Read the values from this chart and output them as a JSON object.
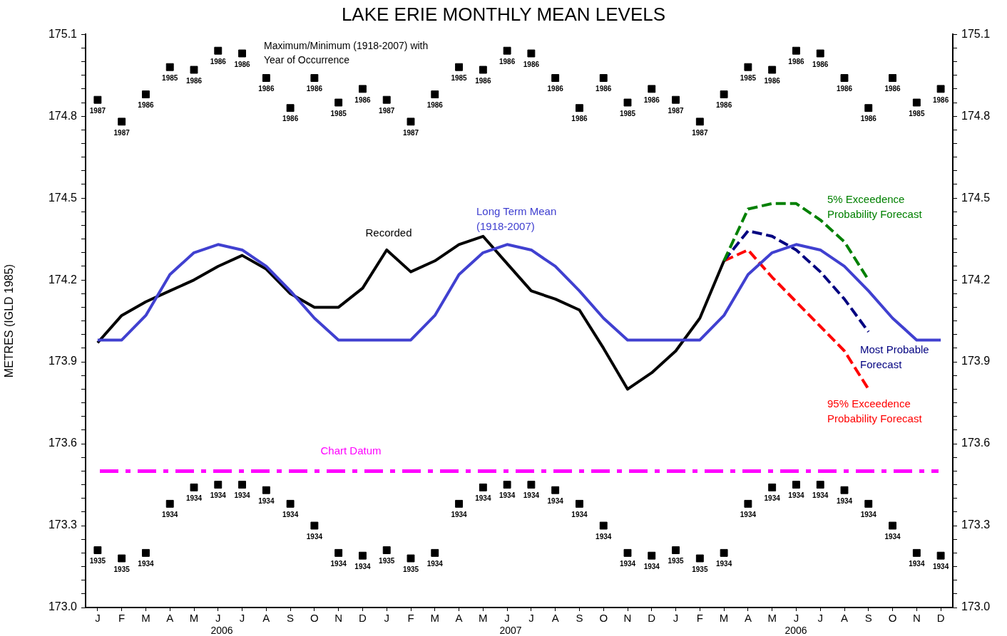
{
  "chart_data": {
    "type": "line",
    "title": "LAKE ERIE MONTHLY MEAN LEVELS",
    "ylabel": "METRES (IGLD 1985)",
    "categories": [
      "J",
      "F",
      "M",
      "A",
      "M",
      "J",
      "J",
      "A",
      "S",
      "O",
      "N",
      "D",
      "J",
      "F",
      "M",
      "A",
      "M",
      "J",
      "J",
      "A",
      "S",
      "O",
      "N",
      "D",
      "J",
      "F",
      "M",
      "A",
      "M",
      "J",
      "J",
      "A",
      "S",
      "O",
      "N",
      "D"
    ],
    "series": [
      {
        "name": "Long Term Mean (1918-2007)",
        "color": "#4040d0",
        "line_style": "solid",
        "values": [
          173.98,
          173.98,
          174.07,
          174.22,
          174.3,
          174.33,
          174.31,
          174.25,
          174.16,
          174.06,
          173.98,
          173.98,
          173.98,
          173.98,
          174.07,
          174.22,
          174.3,
          174.33,
          174.31,
          174.25,
          174.16,
          174.06,
          173.98,
          173.98,
          173.98,
          173.98,
          174.07,
          174.22,
          174.3,
          174.33,
          174.31,
          174.25,
          174.16,
          174.06,
          173.98,
          173.98
        ]
      },
      {
        "name": "Recorded",
        "color": "#000000",
        "line_style": "solid",
        "values": [
          173.97,
          174.07,
          174.12,
          174.16,
          174.2,
          174.25,
          174.29,
          174.24,
          174.15,
          174.1,
          174.1,
          174.17,
          174.31,
          174.23,
          174.27,
          174.33,
          174.36,
          174.26,
          174.16,
          174.13,
          174.09,
          173.95,
          173.8,
          173.86,
          173.94,
          174.06,
          174.27,
          null,
          null,
          null,
          null,
          null,
          null,
          null,
          null,
          null
        ]
      },
      {
        "name": "5% Exceedence Probability Forecast",
        "color": "#008000",
        "line_style": "dashed",
        "values": [
          null,
          null,
          null,
          null,
          null,
          null,
          null,
          null,
          null,
          null,
          null,
          null,
          null,
          null,
          null,
          null,
          null,
          null,
          null,
          null,
          null,
          null,
          null,
          null,
          null,
          null,
          174.27,
          174.46,
          174.48,
          174.48,
          174.42,
          174.34,
          174.2,
          null,
          null,
          null
        ]
      },
      {
        "name": "Most Probable Forecast",
        "color": "#000080",
        "line_style": "dashed",
        "values": [
          null,
          null,
          null,
          null,
          null,
          null,
          null,
          null,
          null,
          null,
          null,
          null,
          null,
          null,
          null,
          null,
          null,
          null,
          null,
          null,
          null,
          null,
          null,
          null,
          null,
          null,
          174.27,
          174.38,
          174.36,
          174.31,
          174.23,
          174.13,
          174.01,
          null,
          null,
          null
        ]
      },
      {
        "name": "95% Exceedence Probability Forecast",
        "color": "#ff0000",
        "line_style": "dashed",
        "values": [
          null,
          null,
          null,
          null,
          null,
          null,
          null,
          null,
          null,
          null,
          null,
          null,
          null,
          null,
          null,
          null,
          null,
          null,
          null,
          null,
          null,
          null,
          null,
          null,
          null,
          null,
          174.27,
          174.31,
          174.21,
          174.12,
          174.03,
          173.94,
          173.8,
          null,
          null,
          null
        ]
      },
      {
        "type": "scatter",
        "marker": "square",
        "color": "#000000",
        "values": [
          174.86,
          174.78,
          174.88,
          174.98,
          174.97,
          175.04,
          175.03,
          174.94,
          174.83,
          174.94,
          174.85,
          174.9,
          174.86,
          174.78,
          174.88,
          174.98,
          174.97,
          175.04,
          175.03,
          174.94,
          174.83,
          174.94,
          174.85,
          174.9,
          174.86,
          174.78,
          174.88,
          174.98,
          174.97,
          175.04,
          175.03,
          174.94,
          174.83,
          174.94,
          174.85,
          174.9
        ]
      },
      {
        "type": "scatter",
        "marker": "square",
        "color": "#000000",
        "values": [
          173.21,
          173.18,
          173.2,
          173.38,
          173.44,
          173.45,
          173.45,
          173.43,
          173.38,
          173.3,
          173.2,
          173.19,
          173.21,
          173.18,
          173.2,
          173.38,
          173.44,
          173.45,
          173.45,
          173.43,
          173.38,
          173.3,
          173.2,
          173.19,
          173.21,
          173.18,
          173.2,
          173.38,
          173.44,
          173.45,
          173.45,
          173.43,
          173.38,
          173.3,
          173.2,
          173.19
        ]
      }
    ],
    "ref_lines": [
      {
        "axis": "y",
        "value": 173.5,
        "label": "Chart Datum",
        "color": "#ff00ff",
        "line_style": "dashdot"
      }
    ],
    "annotations": [
      "Maximum/Minimum (1918-2007) with Year of Occurrence",
      "2006",
      "2007",
      "2006",
      "1987",
      "1987",
      "1986",
      "1985",
      "1986",
      "1986",
      "1986",
      "1986",
      "1986",
      "1986",
      "1985",
      "1986",
      "1987",
      "1987",
      "1986",
      "1985",
      "1986",
      "1986",
      "1986",
      "1986",
      "1986",
      "1986",
      "1985",
      "1986",
      "1987",
      "1987",
      "1986",
      "1985",
      "1986",
      "1986",
      "1986",
      "1986",
      "1986",
      "1986",
      "1985",
      "1986",
      "1935",
      "1935",
      "1934",
      "1934",
      "1934",
      "1934",
      "1934",
      "1934",
      "1934",
      "1934",
      "1934",
      "1934",
      "1935",
      "1935",
      "1934",
      "1934",
      "1934",
      "1934",
      "1934",
      "1934",
      "1934",
      "1934",
      "1934",
      "1934",
      "1935",
      "1935",
      "1934",
      "1934",
      "1934",
      "1934",
      "1934",
      "1934",
      "1934",
      "1934",
      "1934",
      "1934"
    ],
    "ylim": [
      173.0,
      175.1
    ],
    "y2lim": [
      173.0,
      175.1
    ],
    "yticks": [
      {
        "value": 173,
        "label": "173.0"
      },
      {
        "value": 173.05,
        "label": null
      },
      {
        "value": 173.1,
        "label": null
      },
      {
        "value": 173.15,
        "label": null
      },
      {
        "value": 173.2,
        "label": null
      },
      {
        "value": 173.25,
        "label": null
      },
      173.3,
      {
        "value": 173.35,
        "label": null
      },
      {
        "value": 173.4,
        "label": null
      },
      {
        "value": 173.45,
        "label": null
      },
      {
        "value": 173.5,
        "label": null
      },
      {
        "value": 173.55,
        "label": null
      },
      173.6,
      {
        "value": 173.65,
        "label": null
      },
      {
        "value": 173.7,
        "label": null
      },
      {
        "value": 173.75,
        "label": null
      },
      {
        "value": 173.8,
        "label": null
      },
      {
        "value": 173.85,
        "label": null
      },
      173.9,
      {
        "value": 173.95,
        "label": null
      },
      {
        "value": 174,
        "label": null
      },
      {
        "value": 174.05,
        "label": null
      },
      {
        "value": 174.1,
        "label": null
      },
      {
        "value": 174.15,
        "label": null
      },
      174.2,
      {
        "value": 174.25,
        "label": null
      },
      {
        "value": 174.3,
        "label": null
      },
      {
        "value": 174.35,
        "label": null
      },
      {
        "value": 174.4,
        "label": null
      },
      {
        "value": 174.45,
        "label": null
      },
      174.5,
      {
        "value": 174.55,
        "label": null
      },
      {
        "value": 174.6,
        "label": null
      },
      {
        "value": 174.65,
        "label": null
      },
      {
        "value": 174.7,
        "label": null
      },
      {
        "value": 174.75,
        "label": null
      },
      174.8,
      {
        "value": 174.85,
        "label": null
      },
      {
        "value": 174.9,
        "label": null
      },
      {
        "value": 174.95,
        "label": null
      },
      {
        "value": 175,
        "label": null
      },
      {
        "value": 175.05,
        "label": null
      },
      175.1
    ],
    "y2ticks": [
      {
        "value": 173,
        "label": "173.0"
      },
      {
        "value": 173.05,
        "label": null
      },
      {
        "value": 173.1,
        "label": null
      },
      {
        "value": 173.15,
        "label": null
      },
      {
        "value": 173.2,
        "label": null
      },
      {
        "value": 173.25,
        "label": null
      },
      173.3,
      {
        "value": 173.35,
        "label": null
      },
      {
        "value": 173.4,
        "label": null
      },
      {
        "value": 173.45,
        "label": null
      },
      {
        "value": 173.5,
        "label": null
      },
      {
        "value": 173.55,
        "label": null
      },
      173.6,
      {
        "value": 173.65,
        "label": null
      },
      {
        "value": 173.7,
        "label": null
      },
      {
        "value": 173.75,
        "label": null
      },
      {
        "value": 173.8,
        "label": null
      },
      {
        "value": 173.85,
        "label": null
      },
      173.9,
      {
        "value": 173.95,
        "label": null
      },
      {
        "value": 174,
        "label": null
      },
      {
        "value": 174.05,
        "label": null
      },
      {
        "value": 174.1,
        "label": null
      },
      {
        "value": 174.15,
        "label": null
      },
      174.2,
      {
        "value": 174.25,
        "label": null
      },
      {
        "value": 174.3,
        "label": null
      },
      {
        "value": 174.35,
        "label": null
      },
      {
        "value": 174.4,
        "label": null
      },
      {
        "value": 174.45,
        "label": null
      },
      174.5,
      {
        "value": 174.55,
        "label": null
      },
      {
        "value": 174.6,
        "label": null
      },
      {
        "value": 174.65,
        "label": null
      },
      {
        "value": 174.7,
        "label": null
      },
      {
        "value": 174.75,
        "label": null
      },
      174.8,
      {
        "value": 174.85,
        "label": null
      },
      {
        "value": 174.9,
        "label": null
      },
      {
        "value": 174.95,
        "label": null
      },
      {
        "value": 175,
        "label": null
      },
      {
        "value": 175.05,
        "label": null
      },
      175.1
    ],
    "grid": false,
    "legend": false,
    "marker": "none"
  }
}
